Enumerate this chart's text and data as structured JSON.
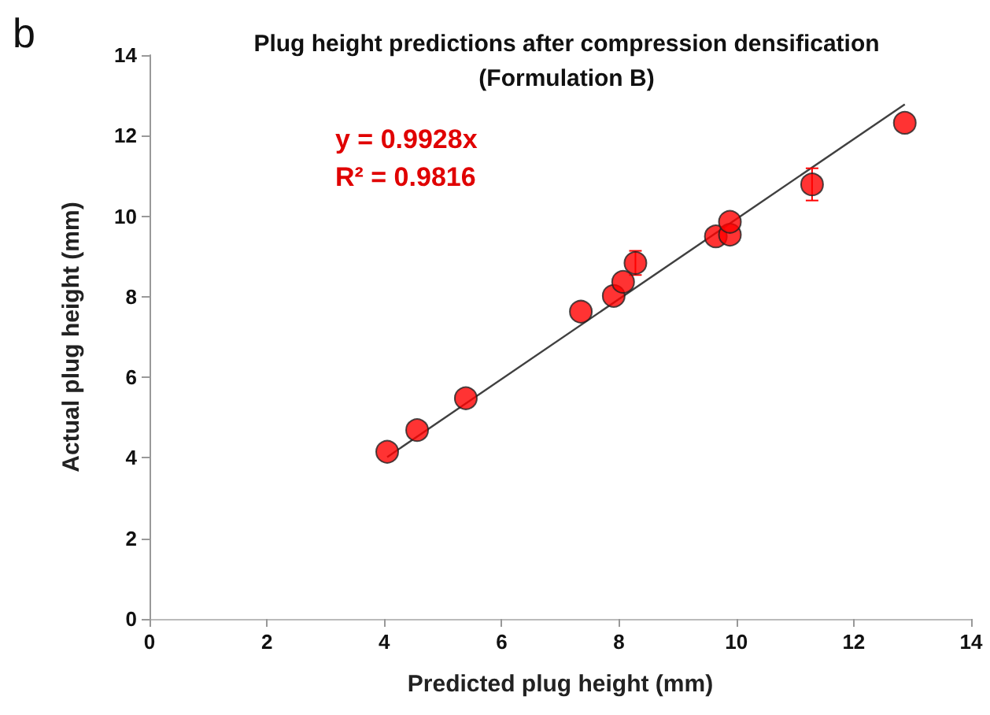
{
  "chart_data": {
    "type": "scatter",
    "title": "Plug height predictions after compression densification\n(Formulation B)",
    "xlabel": "Predicted plug height (mm)",
    "ylabel": "Actual plug height (mm)",
    "x": [
      4.05,
      4.56,
      5.39,
      7.35,
      7.91,
      8.07,
      8.28,
      9.65,
      9.89,
      9.89,
      11.29,
      12.87
    ],
    "series": [
      {
        "color": "#ff0000",
        "values": [
          4.15,
          4.69,
          5.48,
          7.63,
          8.02,
          8.37,
          8.84,
          9.5,
          9.54,
          9.86,
          10.79,
          12.32
        ],
        "errors": [
          null,
          null,
          null,
          null,
          null,
          null,
          0.3,
          null,
          null,
          null,
          0.4,
          null
        ]
      },
      {
        "type": "line",
        "marker": "none",
        "color": "#404040",
        "x": [
          4.05,
          12.87
        ],
        "values": [
          4.02,
          12.78
        ]
      }
    ],
    "marker": "circle",
    "grid": false,
    "xlim": [
      0,
      14
    ],
    "xticks": [
      0,
      2,
      4,
      6,
      8,
      10,
      12,
      14
    ],
    "ylim": [
      0,
      14
    ],
    "yticks": [
      0,
      2,
      4,
      6,
      8,
      10,
      12,
      14
    ],
    "annotations": [
      "b",
      "y = 0.9928x",
      "R² = 0.9816"
    ]
  }
}
